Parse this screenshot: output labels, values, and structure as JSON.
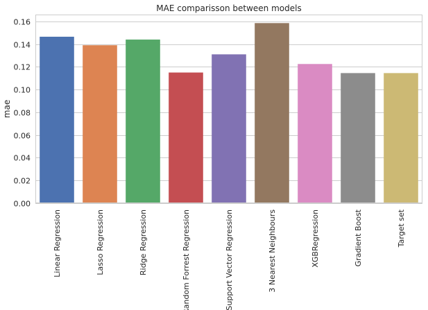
{
  "chart_data": {
    "type": "bar",
    "title": "MAE comparisson between models",
    "xlabel": "",
    "ylabel": "mae",
    "ylim": [
      0,
      0.166
    ],
    "yticks": [
      0.0,
      0.02,
      0.04,
      0.06,
      0.08,
      0.1,
      0.12,
      0.14,
      0.16
    ],
    "ytick_labels": [
      "0.00",
      "0.02",
      "0.04",
      "0.06",
      "0.08",
      "0.10",
      "0.12",
      "0.14",
      "0.16"
    ],
    "grid": "horizontal",
    "categories": [
      "Linear Regression",
      "Lasso Regression",
      "Ridge Regression",
      "Random Forrest Regression",
      "Support Vector Regression",
      "3 Nearest Neighbours",
      "XGBRegression",
      "Gradient Boost",
      "Target set"
    ],
    "values": [
      0.1465,
      0.139,
      0.144,
      0.115,
      0.131,
      0.1585,
      0.1225,
      0.1145,
      0.1145
    ],
    "colors": [
      "#4c72b0",
      "#dd8452",
      "#55a868",
      "#c44e52",
      "#8172b3",
      "#937860",
      "#da8bc3",
      "#8c8c8c",
      "#ccb974"
    ]
  }
}
